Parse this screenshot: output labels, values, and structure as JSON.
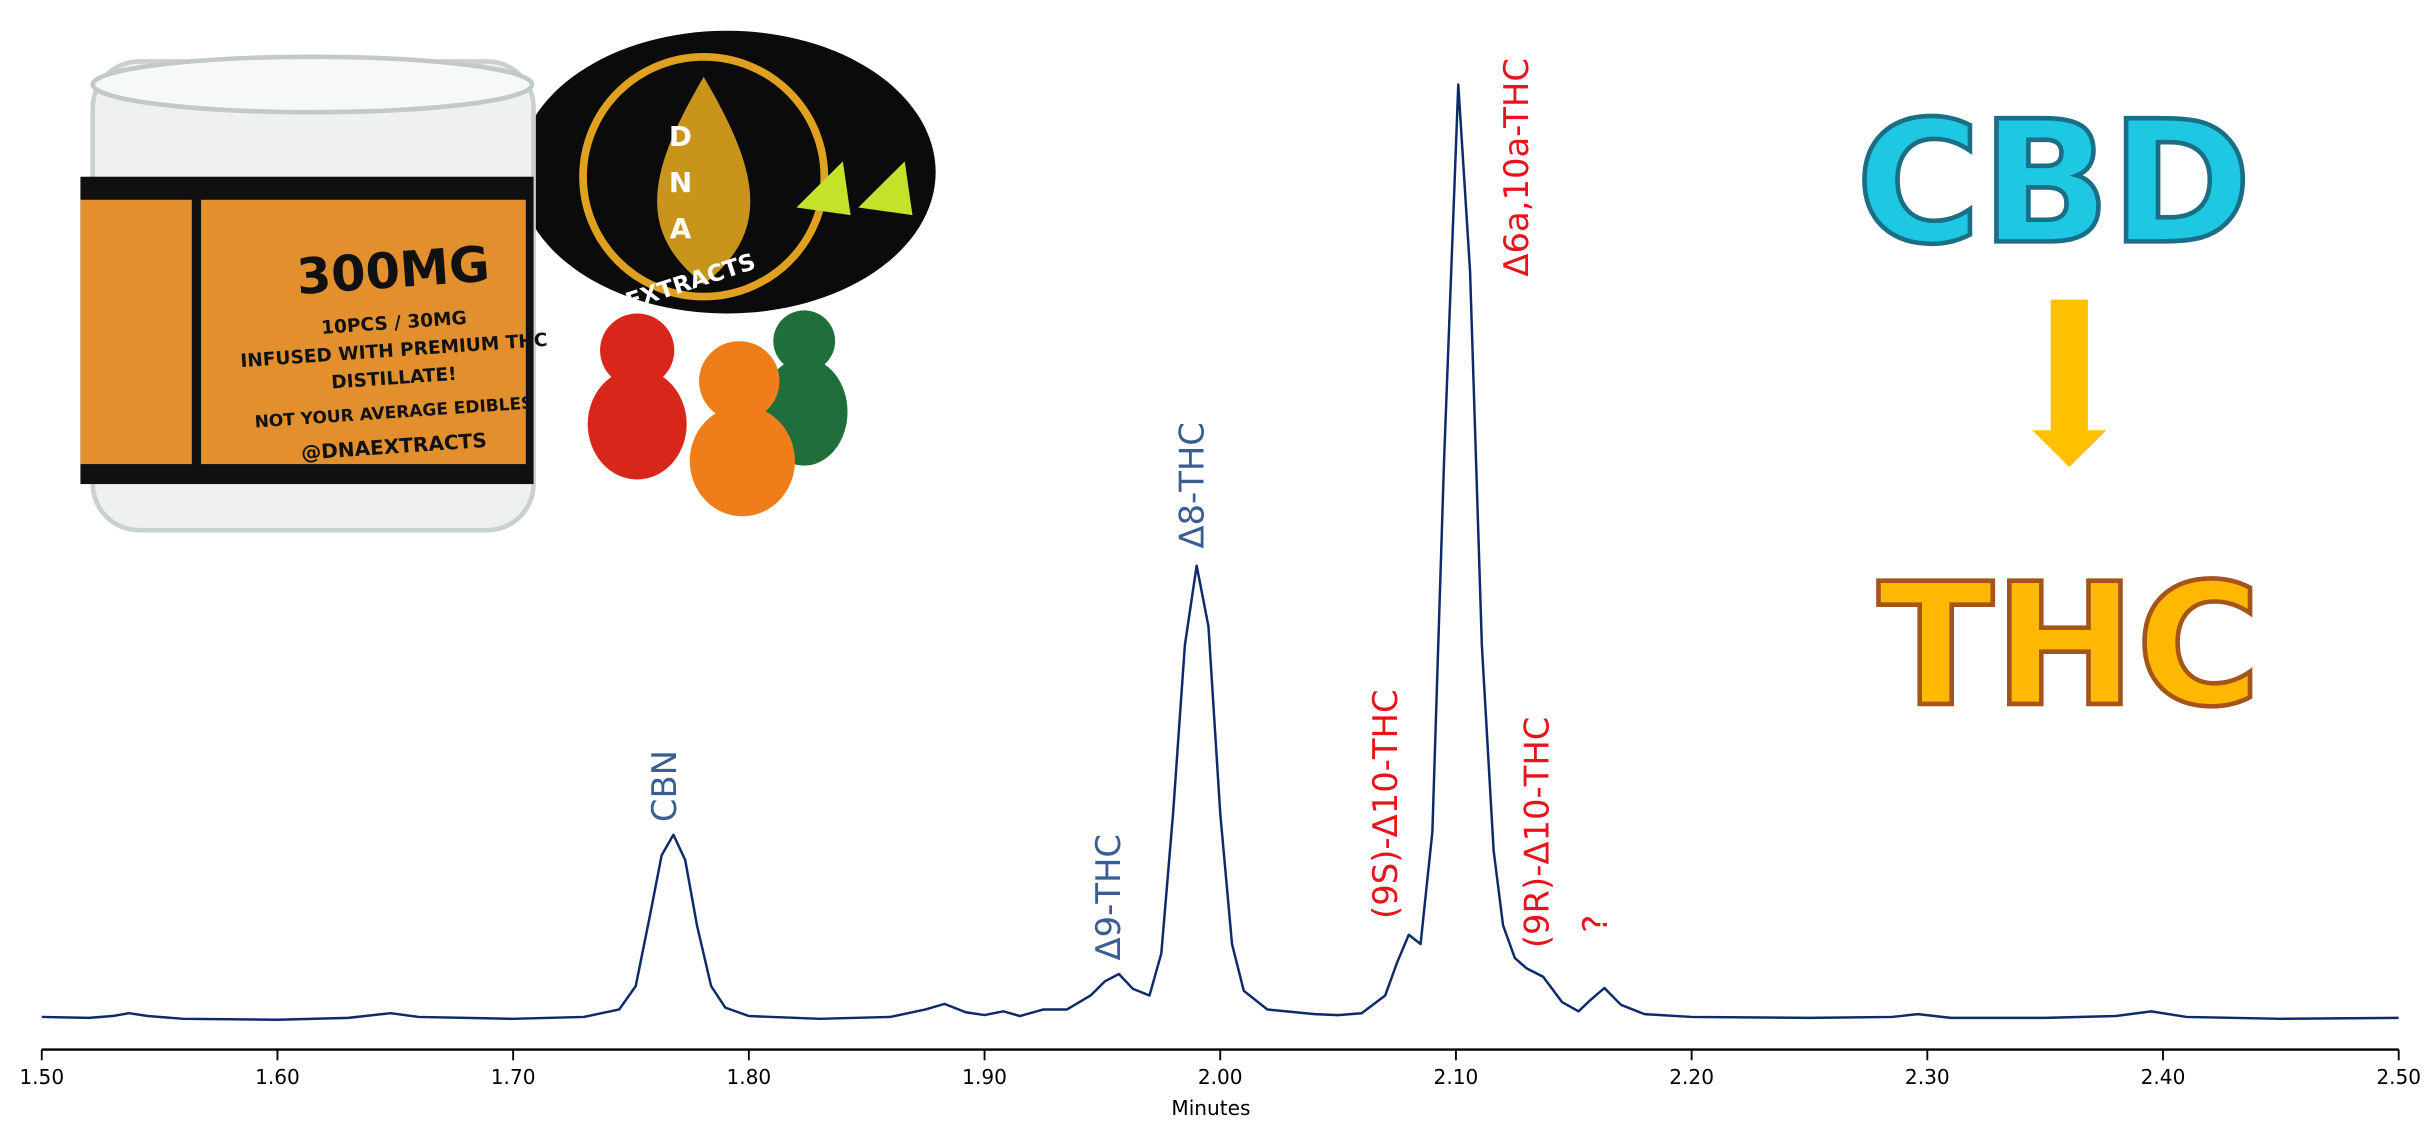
{
  "chart_data": {
    "type": "line",
    "x_label": "Minutes",
    "xlim": [
      1.5,
      2.5
    ],
    "ylim": [
      -3,
      103
    ],
    "xticks": [
      {
        "value": 1.5,
        "label": "1.50"
      },
      {
        "value": 1.6,
        "label": "1.60"
      },
      {
        "value": 1.7,
        "label": "1.70"
      },
      {
        "value": 1.8,
        "label": "1.80"
      },
      {
        "value": 1.9,
        "label": "1.90"
      },
      {
        "value": 2.0,
        "label": "2.00"
      },
      {
        "value": 2.1,
        "label": "2.10"
      },
      {
        "value": 2.2,
        "label": "2.20"
      },
      {
        "value": 2.3,
        "label": "2.30"
      },
      {
        "value": 2.4,
        "label": "2.40"
      },
      {
        "value": 2.5,
        "label": "2.50"
      }
    ],
    "color": "#0d2a6b",
    "x": [
      1.5,
      1.52,
      1.53,
      1.537,
      1.545,
      1.56,
      1.6,
      1.63,
      1.648,
      1.66,
      1.7,
      1.73,
      1.745,
      1.752,
      1.758,
      1.763,
      1.768,
      1.773,
      1.778,
      1.784,
      1.79,
      1.8,
      1.83,
      1.86,
      1.875,
      1.883,
      1.892,
      1.9,
      1.908,
      1.915,
      1.925,
      1.935,
      1.945,
      1.951,
      1.957,
      1.963,
      1.97,
      1.975,
      1.98,
      1.985,
      1.99,
      1.995,
      2.0,
      2.005,
      2.01,
      2.02,
      2.04,
      2.05,
      2.06,
      2.07,
      2.075,
      2.08,
      2.085,
      2.09,
      2.095,
      2.101,
      2.106,
      2.111,
      2.116,
      2.12,
      2.125,
      2.13,
      2.137,
      2.145,
      2.152,
      2.157,
      2.163,
      2.17,
      2.18,
      2.2,
      2.25,
      2.285,
      2.296,
      2.31,
      2.35,
      2.38,
      2.395,
      2.41,
      2.45,
      2.5
    ],
    "values": [
      0.2,
      0.1,
      0.3,
      0.6,
      0.3,
      0,
      -0.1,
      0.1,
      0.6,
      0.2,
      0,
      0.2,
      1,
      3.5,
      11,
      17.5,
      19.7,
      17,
      10,
      3.5,
      1.2,
      0.3,
      0,
      0.2,
      1,
      1.6,
      0.7,
      0.4,
      0.8,
      0.3,
      1,
      1,
      2.5,
      4,
      4.8,
      3.2,
      2.5,
      7,
      22,
      40,
      48.5,
      42,
      22,
      8,
      3,
      1,
      0.5,
      0.4,
      0.6,
      2.5,
      6,
      9,
      8,
      20,
      60,
      100,
      80,
      40,
      18,
      10,
      6.5,
      5.4,
      4.5,
      1.8,
      0.8,
      2,
      3.3,
      1.5,
      0.5,
      0.2,
      0.1,
      0.2,
      0.5,
      0.1,
      0.1,
      0.3,
      0.8,
      0.2,
      0,
      0.1
    ],
    "annotations": [
      {
        "text": "CBN",
        "color": "#3a5d92"
      },
      {
        "text": "Δ9-THC",
        "color": "#3a5d92"
      },
      {
        "text": "Δ8-THC",
        "color": "#3a5d92"
      },
      {
        "text": "(9S)-Δ10-THC",
        "color": "#e8141b"
      },
      {
        "text": "Δ6a,10a-THC",
        "color": "#e8141b"
      },
      {
        "text": "(9R)-Δ10-THC",
        "color": "#e8141b"
      },
      {
        "text": "?",
        "color": "#e8141b"
      }
    ]
  },
  "conversion": {
    "from": "CBD",
    "to": "THC"
  },
  "photo": {
    "dose": "300MG",
    "pieces": "10PCS / 30MG",
    "line1": "INFUSED WITH PREMIUM THC",
    "line2": "DISTILLATE!",
    "line3": "NOT YOUR AVERAGE EDIBLES",
    "handle": "@DNAEXTRACTS",
    "brand": "EXTRACTS",
    "d": "D",
    "n": "N",
    "a": "A"
  }
}
